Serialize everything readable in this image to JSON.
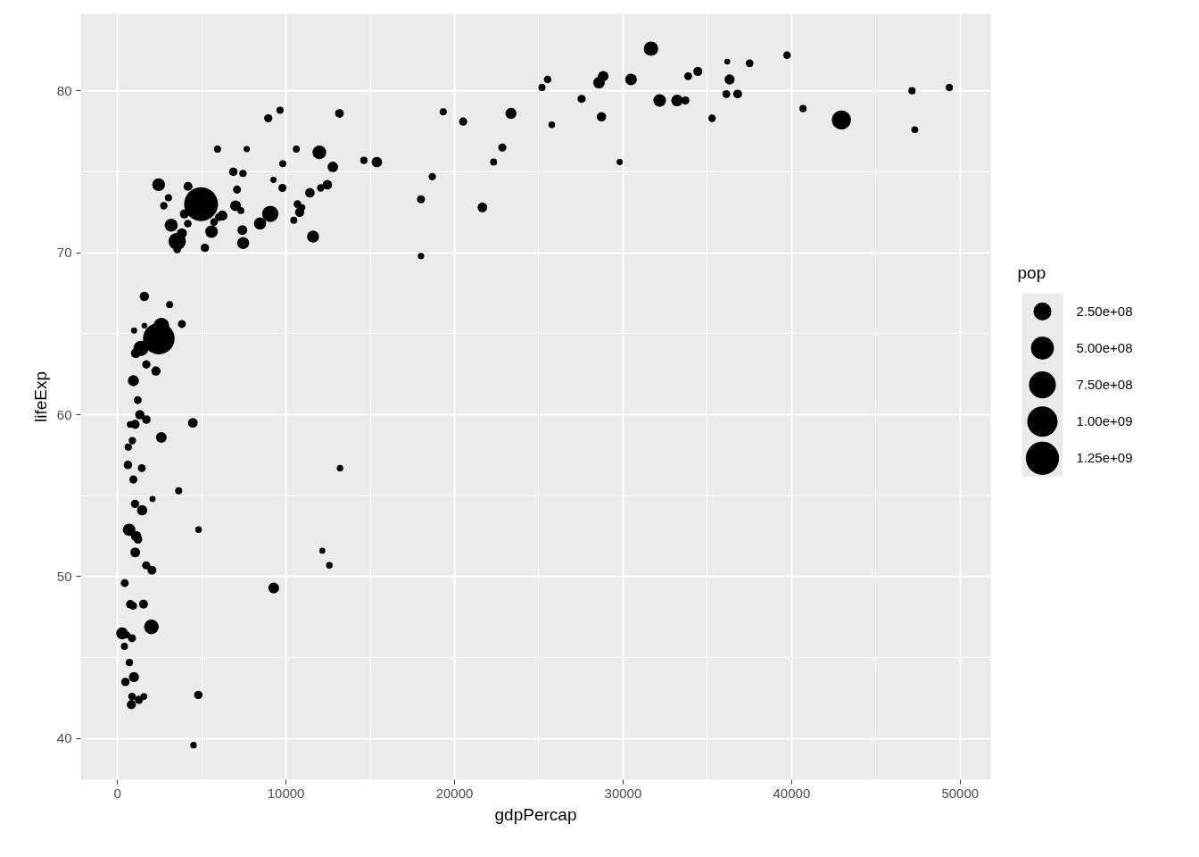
{
  "chart_data": {
    "type": "bubble",
    "xlabel": "gdpPercap",
    "ylabel": "lifeExp",
    "legend_title": "pop",
    "grid": true,
    "marker": "circle",
    "xlim": [
      -2180,
      51810
    ],
    "xticks": [
      0,
      10000,
      20000,
      30000,
      40000,
      50000
    ],
    "ylim": [
      37.46,
      84.75
    ],
    "yticks": [
      40,
      50,
      60,
      70,
      80
    ],
    "size_legend": [
      {
        "value": 0.28,
        "label": "2.50e+08"
      },
      {
        "value": 0.46,
        "label": "5.00e+08"
      },
      {
        "value": 0.63,
        "label": "7.50e+08"
      },
      {
        "value": 0.8,
        "label": "1.00e+09"
      },
      {
        "value": 0.96,
        "label": "1.25e+09"
      }
    ],
    "series": [
      {
        "color": "#000000",
        "x": [
          975,
          5937,
          6223,
          4797,
          12779,
          34435,
          36126,
          29796,
          1391,
          33693,
          1441,
          3822,
          7446,
          12570,
          9066,
          10681,
          1217,
          430,
          1714,
          2042,
          36319,
          706,
          1704,
          13172,
          4959,
          7007,
          986,
          278,
          3633,
          9645,
          1545,
          14619,
          8948,
          22833,
          35278,
          2082,
          6025,
          6873,
          5581,
          5728,
          12154,
          641,
          691,
          null,
          30470,
          13206,
          753,
          32170,
          1328,
          27538,
          5186,
          943,
          579,
          1202,
          3548,
          39725,
          18009,
          36181,
          2452,
          3541,
          11606,
          4471,
          40676,
          25523,
          28570,
          7321,
          31656,
          null,
          1463,
          1593,
          23348,
          47307,
          1569,
          10461,
          415,
          12058,
          1045,
          759,
          12452,
          1043,
          null,
          10957,
          11978,
          3096,
          9254,
          3820,
          824,
          944,
          4811,
          1091,
          36798,
          25185,
          2749,
          620,
          2014,
          49357,
          22316,
          2606,
          9809,
          4173,
          7409,
          3190,
          15390,
          20510,
          19329,
          7670,
          10808,
          863,
          1598,
          21655,
          1712,
          9787,
          863,
          47143,
          18678,
          25768,
          926,
          9270,
          28821,
          3970,
          2602,
          4513,
          33860,
          37506,
          4185,
          28718,
          1107,
          7458,
          883,
          18009,
          7093,
          8458,
          1056,
          33203,
          42952,
          10611,
          11416,
          2442,
          3025,
          2281,
          1271,
          470
        ],
        "values": [
          43.8,
          76.4,
          72.3,
          42.7,
          75.3,
          81.2,
          79.8,
          75.6,
          64.1,
          79.4,
          56.7,
          65.6,
          74.9,
          50.7,
          72.4,
          73.0,
          52.3,
          49.6,
          59.7,
          50.4,
          80.7,
          44.7,
          50.7,
          78.6,
          73.0,
          72.9,
          65.2,
          46.5,
          55.3,
          78.8,
          48.3,
          75.7,
          78.3,
          76.5,
          78.3,
          54.8,
          72.2,
          75.0,
          71.3,
          71.9,
          51.6,
          58.0,
          52.9,
          null,
          80.7,
          56.7,
          59.4,
          79.4,
          60.0,
          79.5,
          70.3,
          56.0,
          46.4,
          60.9,
          70.2,
          82.2,
          73.3,
          81.8,
          64.7,
          70.7,
          71.0,
          59.5,
          78.9,
          80.7,
          80.5,
          72.6,
          82.6,
          null,
          54.1,
          67.3,
          78.6,
          77.6,
          42.6,
          72.0,
          45.7,
          74.0,
          59.4,
          48.3,
          74.2,
          54.5,
          null,
          72.8,
          76.2,
          66.8,
          74.5,
          71.2,
          42.1,
          62.1,
          52.9,
          63.8,
          79.8,
          80.2,
          72.9,
          56.9,
          46.9,
          80.2,
          75.6,
          65.5,
          75.5,
          71.8,
          71.4,
          71.7,
          75.6,
          78.1,
          78.7,
          76.4,
          72.5,
          46.2,
          65.5,
          72.8,
          63.1,
          74.0,
          42.6,
          80.0,
          74.7,
          77.9,
          48.2,
          49.3,
          80.9,
          72.4,
          58.6,
          39.6,
          80.9,
          81.7,
          74.1,
          78.4,
          52.5,
          70.6,
          58.4,
          69.8,
          73.9,
          71.8,
          51.5,
          79.4,
          78.2,
          76.4,
          73.7,
          74.2,
          73.4,
          62.7,
          42.4,
          43.5
        ],
        "sizes": [
          0.088,
          0.044,
          0.089,
          0.061,
          0.097,
          0.073,
          0.054,
          0.033,
          0.2,
          0.058,
          0.053,
          0.055,
          0.046,
          0.038,
          0.233,
          0.052,
          0.064,
          0.054,
          0.064,
          0.069,
          0.089,
          0.046,
          0.057,
          0.067,
          1.0,
          0.102,
          0.033,
          0.123,
          0.044,
          0.045,
          0.069,
          0.046,
          0.059,
          0.057,
          0.048,
          0.032,
          0.056,
          0.063,
          0.138,
          0.051,
          0.032,
          0.047,
          0.135,
          null,
          0.119,
          0.037,
          0.038,
          0.14,
          0.076,
          0.058,
          0.061,
          0.057,
          0.037,
          0.054,
          0.052,
          0.051,
          0.057,
          0.03,
          0.867,
          0.26,
          0.128,
          0.082,
          0.045,
          0.05,
          0.117,
          0.041,
          0.181,
          null,
          0.092,
          0.077,
          0.107,
          0.041,
          0.039,
          0.044,
          0.043,
          0.049,
          0.071,
          0.062,
          0.079,
          0.06,
          null,
          0.036,
          0.164,
          0.042,
          0.033,
          0.09,
          0.072,
          0.106,
          0.039,
          0.084,
          0.067,
          0.045,
          0.049,
          0.062,
          0.188,
          0.046,
          0.043,
          0.216,
          0.043,
          0.051,
          0.084,
          0.148,
          0.095,
          0.058,
          0.044,
          0.034,
          0.075,
          0.055,
          0.028,
          0.082,
          0.061,
          0.057,
          0.049,
          0.046,
          0.048,
          0.039,
          0.055,
          0.102,
          0.097,
          0.073,
          0.1,
          0.036,
          0.055,
          0.053,
          0.071,
          0.077,
          0.095,
          0.124,
          0.049,
          0.036,
          0.057,
          0.13,
          0.084,
          0.119,
          0.319,
          0.043,
          0.08,
          0.143,
          0.045,
          0.075,
          0.06,
          0.061
        ]
      }
    ]
  }
}
